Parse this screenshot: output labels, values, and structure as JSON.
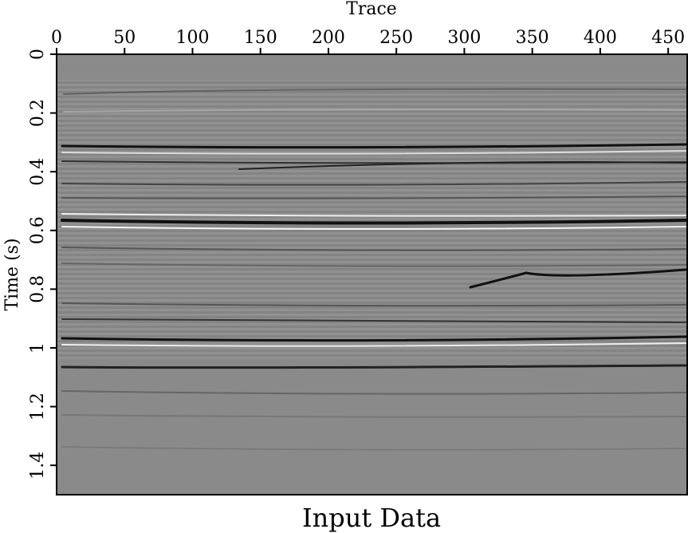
{
  "chart_data": {
    "type": "seismic",
    "title": "Input Data",
    "x_label": "Trace",
    "y_label": "Time (s)",
    "xlim": [
      0,
      464
    ],
    "ylim": [
      0,
      1.5
    ],
    "xticks": [
      0,
      50,
      100,
      150,
      200,
      250,
      300,
      350,
      400,
      450
    ],
    "yticks": [
      0,
      0.2,
      0.4,
      0.6,
      0.8,
      1,
      1.2,
      1.4
    ],
    "y_inverted": true,
    "background_color": "#8a8a8a"
  }
}
